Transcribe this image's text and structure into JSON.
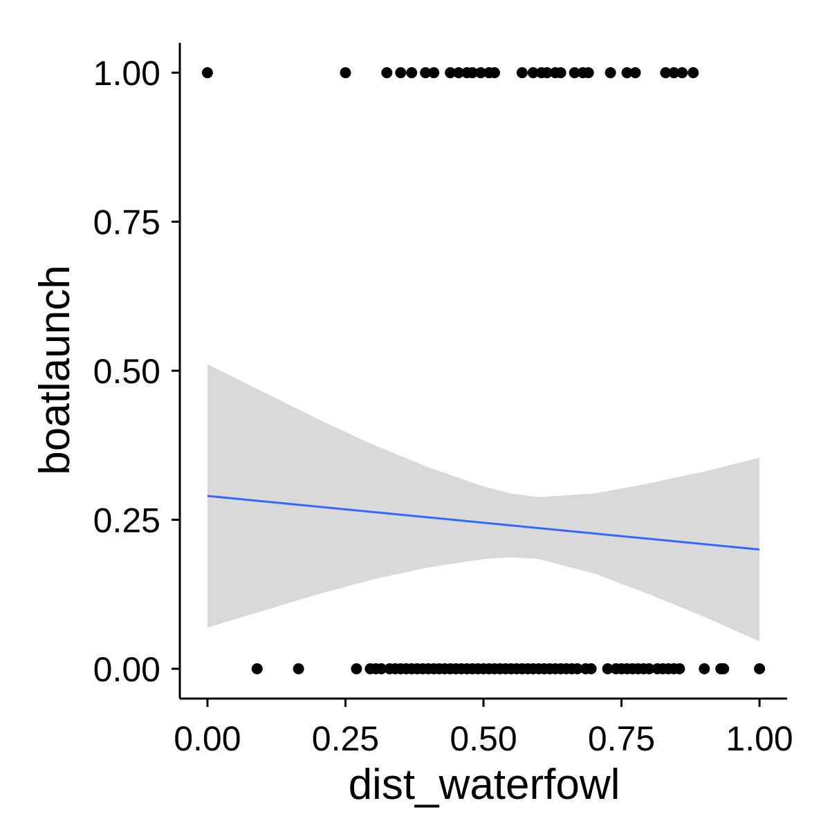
{
  "chart_data": {
    "type": "scatter",
    "title": "",
    "xlabel": "dist_waterfowl",
    "ylabel": "boatlaunch",
    "xlim": [
      -0.05,
      1.05
    ],
    "ylim": [
      -0.05,
      1.05
    ],
    "x_ticks": [
      "0.00",
      "0.25",
      "0.50",
      "0.75",
      "1.00"
    ],
    "y_ticks": [
      "0.00",
      "0.25",
      "0.50",
      "0.75",
      "1.00"
    ],
    "grid": false,
    "legend": "none",
    "colors": {
      "points": "#000000",
      "smooth_line": "#3366FF",
      "confidence_band": "#D9D9D9",
      "axis": "#000000"
    },
    "points": [
      {
        "x": 0.0,
        "y": 1
      },
      {
        "x": 0.25,
        "y": 1
      },
      {
        "x": 0.325,
        "y": 1
      },
      {
        "x": 0.35,
        "y": 1
      },
      {
        "x": 0.37,
        "y": 1
      },
      {
        "x": 0.395,
        "y": 1
      },
      {
        "x": 0.41,
        "y": 1
      },
      {
        "x": 0.44,
        "y": 1
      },
      {
        "x": 0.455,
        "y": 1
      },
      {
        "x": 0.47,
        "y": 1
      },
      {
        "x": 0.48,
        "y": 1
      },
      {
        "x": 0.495,
        "y": 1
      },
      {
        "x": 0.51,
        "y": 1
      },
      {
        "x": 0.52,
        "y": 1
      },
      {
        "x": 0.57,
        "y": 1
      },
      {
        "x": 0.59,
        "y": 1
      },
      {
        "x": 0.605,
        "y": 1
      },
      {
        "x": 0.615,
        "y": 1
      },
      {
        "x": 0.63,
        "y": 1
      },
      {
        "x": 0.64,
        "y": 1
      },
      {
        "x": 0.665,
        "y": 1
      },
      {
        "x": 0.68,
        "y": 1
      },
      {
        "x": 0.69,
        "y": 1
      },
      {
        "x": 0.73,
        "y": 1
      },
      {
        "x": 0.76,
        "y": 1
      },
      {
        "x": 0.775,
        "y": 1
      },
      {
        "x": 0.83,
        "y": 1
      },
      {
        "x": 0.845,
        "y": 1
      },
      {
        "x": 0.86,
        "y": 1
      },
      {
        "x": 0.88,
        "y": 1
      },
      {
        "x": 0.09,
        "y": 0
      },
      {
        "x": 0.165,
        "y": 0
      },
      {
        "x": 0.27,
        "y": 0
      },
      {
        "x": 0.295,
        "y": 0
      },
      {
        "x": 0.305,
        "y": 0
      },
      {
        "x": 0.315,
        "y": 0
      },
      {
        "x": 0.33,
        "y": 0
      },
      {
        "x": 0.34,
        "y": 0
      },
      {
        "x": 0.35,
        "y": 0
      },
      {
        "x": 0.36,
        "y": 0
      },
      {
        "x": 0.37,
        "y": 0
      },
      {
        "x": 0.38,
        "y": 0
      },
      {
        "x": 0.39,
        "y": 0
      },
      {
        "x": 0.4,
        "y": 0
      },
      {
        "x": 0.41,
        "y": 0
      },
      {
        "x": 0.42,
        "y": 0
      },
      {
        "x": 0.43,
        "y": 0
      },
      {
        "x": 0.44,
        "y": 0
      },
      {
        "x": 0.45,
        "y": 0
      },
      {
        "x": 0.46,
        "y": 0
      },
      {
        "x": 0.47,
        "y": 0
      },
      {
        "x": 0.48,
        "y": 0
      },
      {
        "x": 0.49,
        "y": 0
      },
      {
        "x": 0.5,
        "y": 0
      },
      {
        "x": 0.51,
        "y": 0
      },
      {
        "x": 0.52,
        "y": 0
      },
      {
        "x": 0.53,
        "y": 0
      },
      {
        "x": 0.54,
        "y": 0
      },
      {
        "x": 0.55,
        "y": 0
      },
      {
        "x": 0.56,
        "y": 0
      },
      {
        "x": 0.57,
        "y": 0
      },
      {
        "x": 0.58,
        "y": 0
      },
      {
        "x": 0.59,
        "y": 0
      },
      {
        "x": 0.6,
        "y": 0
      },
      {
        "x": 0.61,
        "y": 0
      },
      {
        "x": 0.62,
        "y": 0
      },
      {
        "x": 0.63,
        "y": 0
      },
      {
        "x": 0.64,
        "y": 0
      },
      {
        "x": 0.65,
        "y": 0
      },
      {
        "x": 0.66,
        "y": 0
      },
      {
        "x": 0.67,
        "y": 0
      },
      {
        "x": 0.685,
        "y": 0
      },
      {
        "x": 0.695,
        "y": 0
      },
      {
        "x": 0.725,
        "y": 0
      },
      {
        "x": 0.74,
        "y": 0
      },
      {
        "x": 0.75,
        "y": 0
      },
      {
        "x": 0.76,
        "y": 0
      },
      {
        "x": 0.77,
        "y": 0
      },
      {
        "x": 0.78,
        "y": 0
      },
      {
        "x": 0.79,
        "y": 0
      },
      {
        "x": 0.8,
        "y": 0
      },
      {
        "x": 0.815,
        "y": 0
      },
      {
        "x": 0.825,
        "y": 0
      },
      {
        "x": 0.835,
        "y": 0
      },
      {
        "x": 0.845,
        "y": 0
      },
      {
        "x": 0.855,
        "y": 0
      },
      {
        "x": 0.9,
        "y": 0
      },
      {
        "x": 0.93,
        "y": 0
      },
      {
        "x": 0.935,
        "y": 0
      },
      {
        "x": 1.0,
        "y": 0
      }
    ],
    "smooth": {
      "method": "lm",
      "x": [
        0.0,
        0.1,
        0.2,
        0.3,
        0.4,
        0.5,
        0.55,
        0.6,
        0.7,
        0.8,
        0.9,
        1.0
      ],
      "fit": [
        0.29,
        0.281,
        0.272,
        0.263,
        0.254,
        0.245,
        0.2405,
        0.236,
        0.227,
        0.218,
        0.209,
        0.2
      ],
      "lower": [
        0.069,
        0.097,
        0.125,
        0.15,
        0.17,
        0.184,
        0.187,
        0.184,
        0.16,
        0.125,
        0.087,
        0.046
      ],
      "upper": [
        0.511,
        0.465,
        0.419,
        0.376,
        0.338,
        0.306,
        0.294,
        0.288,
        0.294,
        0.311,
        0.331,
        0.354
      ]
    }
  }
}
